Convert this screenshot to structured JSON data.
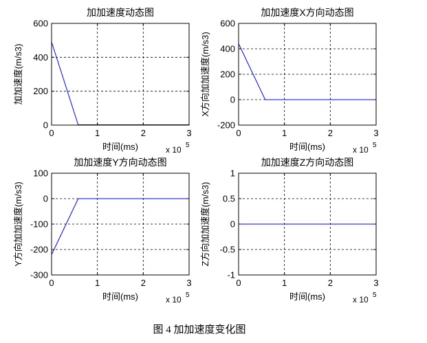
{
  "caption": "图 4  加加速度变化图",
  "chart_data": [
    {
      "type": "line",
      "title": "加加速度动态图",
      "xlabel": "时间(ms)",
      "ylabel": "加加速度(m/s3)",
      "x_multiplier": "x 10",
      "x_multiplier_exp": "5",
      "xlim": [
        0,
        3
      ],
      "ylim": [
        0,
        600
      ],
      "xticks": [
        "0",
        "1",
        "2",
        "3"
      ],
      "yticks": [
        "0",
        "200",
        "400",
        "600"
      ],
      "grid": true,
      "series": [
        {
          "x": [
            0,
            0.58,
            3
          ],
          "y": [
            490,
            2,
            2
          ],
          "color": "#0000ff"
        }
      ]
    },
    {
      "type": "line",
      "title": "加加速度X方向动态图",
      "xlabel": "时间(ms)",
      "ylabel": "X方向加加速度(m/s3)",
      "x_multiplier": "x 10",
      "x_multiplier_exp": "5",
      "xlim": [
        0,
        3
      ],
      "ylim": [
        -200,
        600
      ],
      "xticks": [
        "0",
        "1",
        "2",
        "3"
      ],
      "yticks": [
        "-200",
        "0",
        "200",
        "400",
        "600"
      ],
      "grid": true,
      "series": [
        {
          "x": [
            0,
            0.58,
            3
          ],
          "y": [
            440,
            0,
            0
          ],
          "color": "#0000ff"
        }
      ]
    },
    {
      "type": "line",
      "title": "加加速度Y方向动态图",
      "xlabel": "时间(ms)",
      "ylabel": "Y方向加加速度(m/s3)",
      "x_multiplier": "x 10",
      "x_multiplier_exp": "5",
      "xlim": [
        0,
        3
      ],
      "ylim": [
        -300,
        100
      ],
      "xticks": [
        "0",
        "1",
        "2",
        "3"
      ],
      "yticks": [
        "-300",
        "-200",
        "-100",
        "0",
        "100"
      ],
      "grid": true,
      "series": [
        {
          "x": [
            0,
            0.58,
            3
          ],
          "y": [
            -220,
            0,
            0
          ],
          "color": "#0000ff"
        }
      ]
    },
    {
      "type": "line",
      "title": "加加速度Z方向动态图",
      "xlabel": "时间(ms)",
      "ylabel": "Z方向加加速度(m/s3)",
      "x_multiplier": "x 10",
      "x_multiplier_exp": "5",
      "xlim": [
        0,
        3
      ],
      "ylim": [
        -1,
        1
      ],
      "xticks": [
        "0",
        "1",
        "2",
        "3"
      ],
      "yticks": [
        "-1",
        "-0.5",
        "0",
        "0.5",
        "1"
      ],
      "grid": true,
      "series": [
        {
          "x": [
            0,
            3
          ],
          "y": [
            0,
            0
          ],
          "color": "#0000ff"
        }
      ]
    }
  ]
}
